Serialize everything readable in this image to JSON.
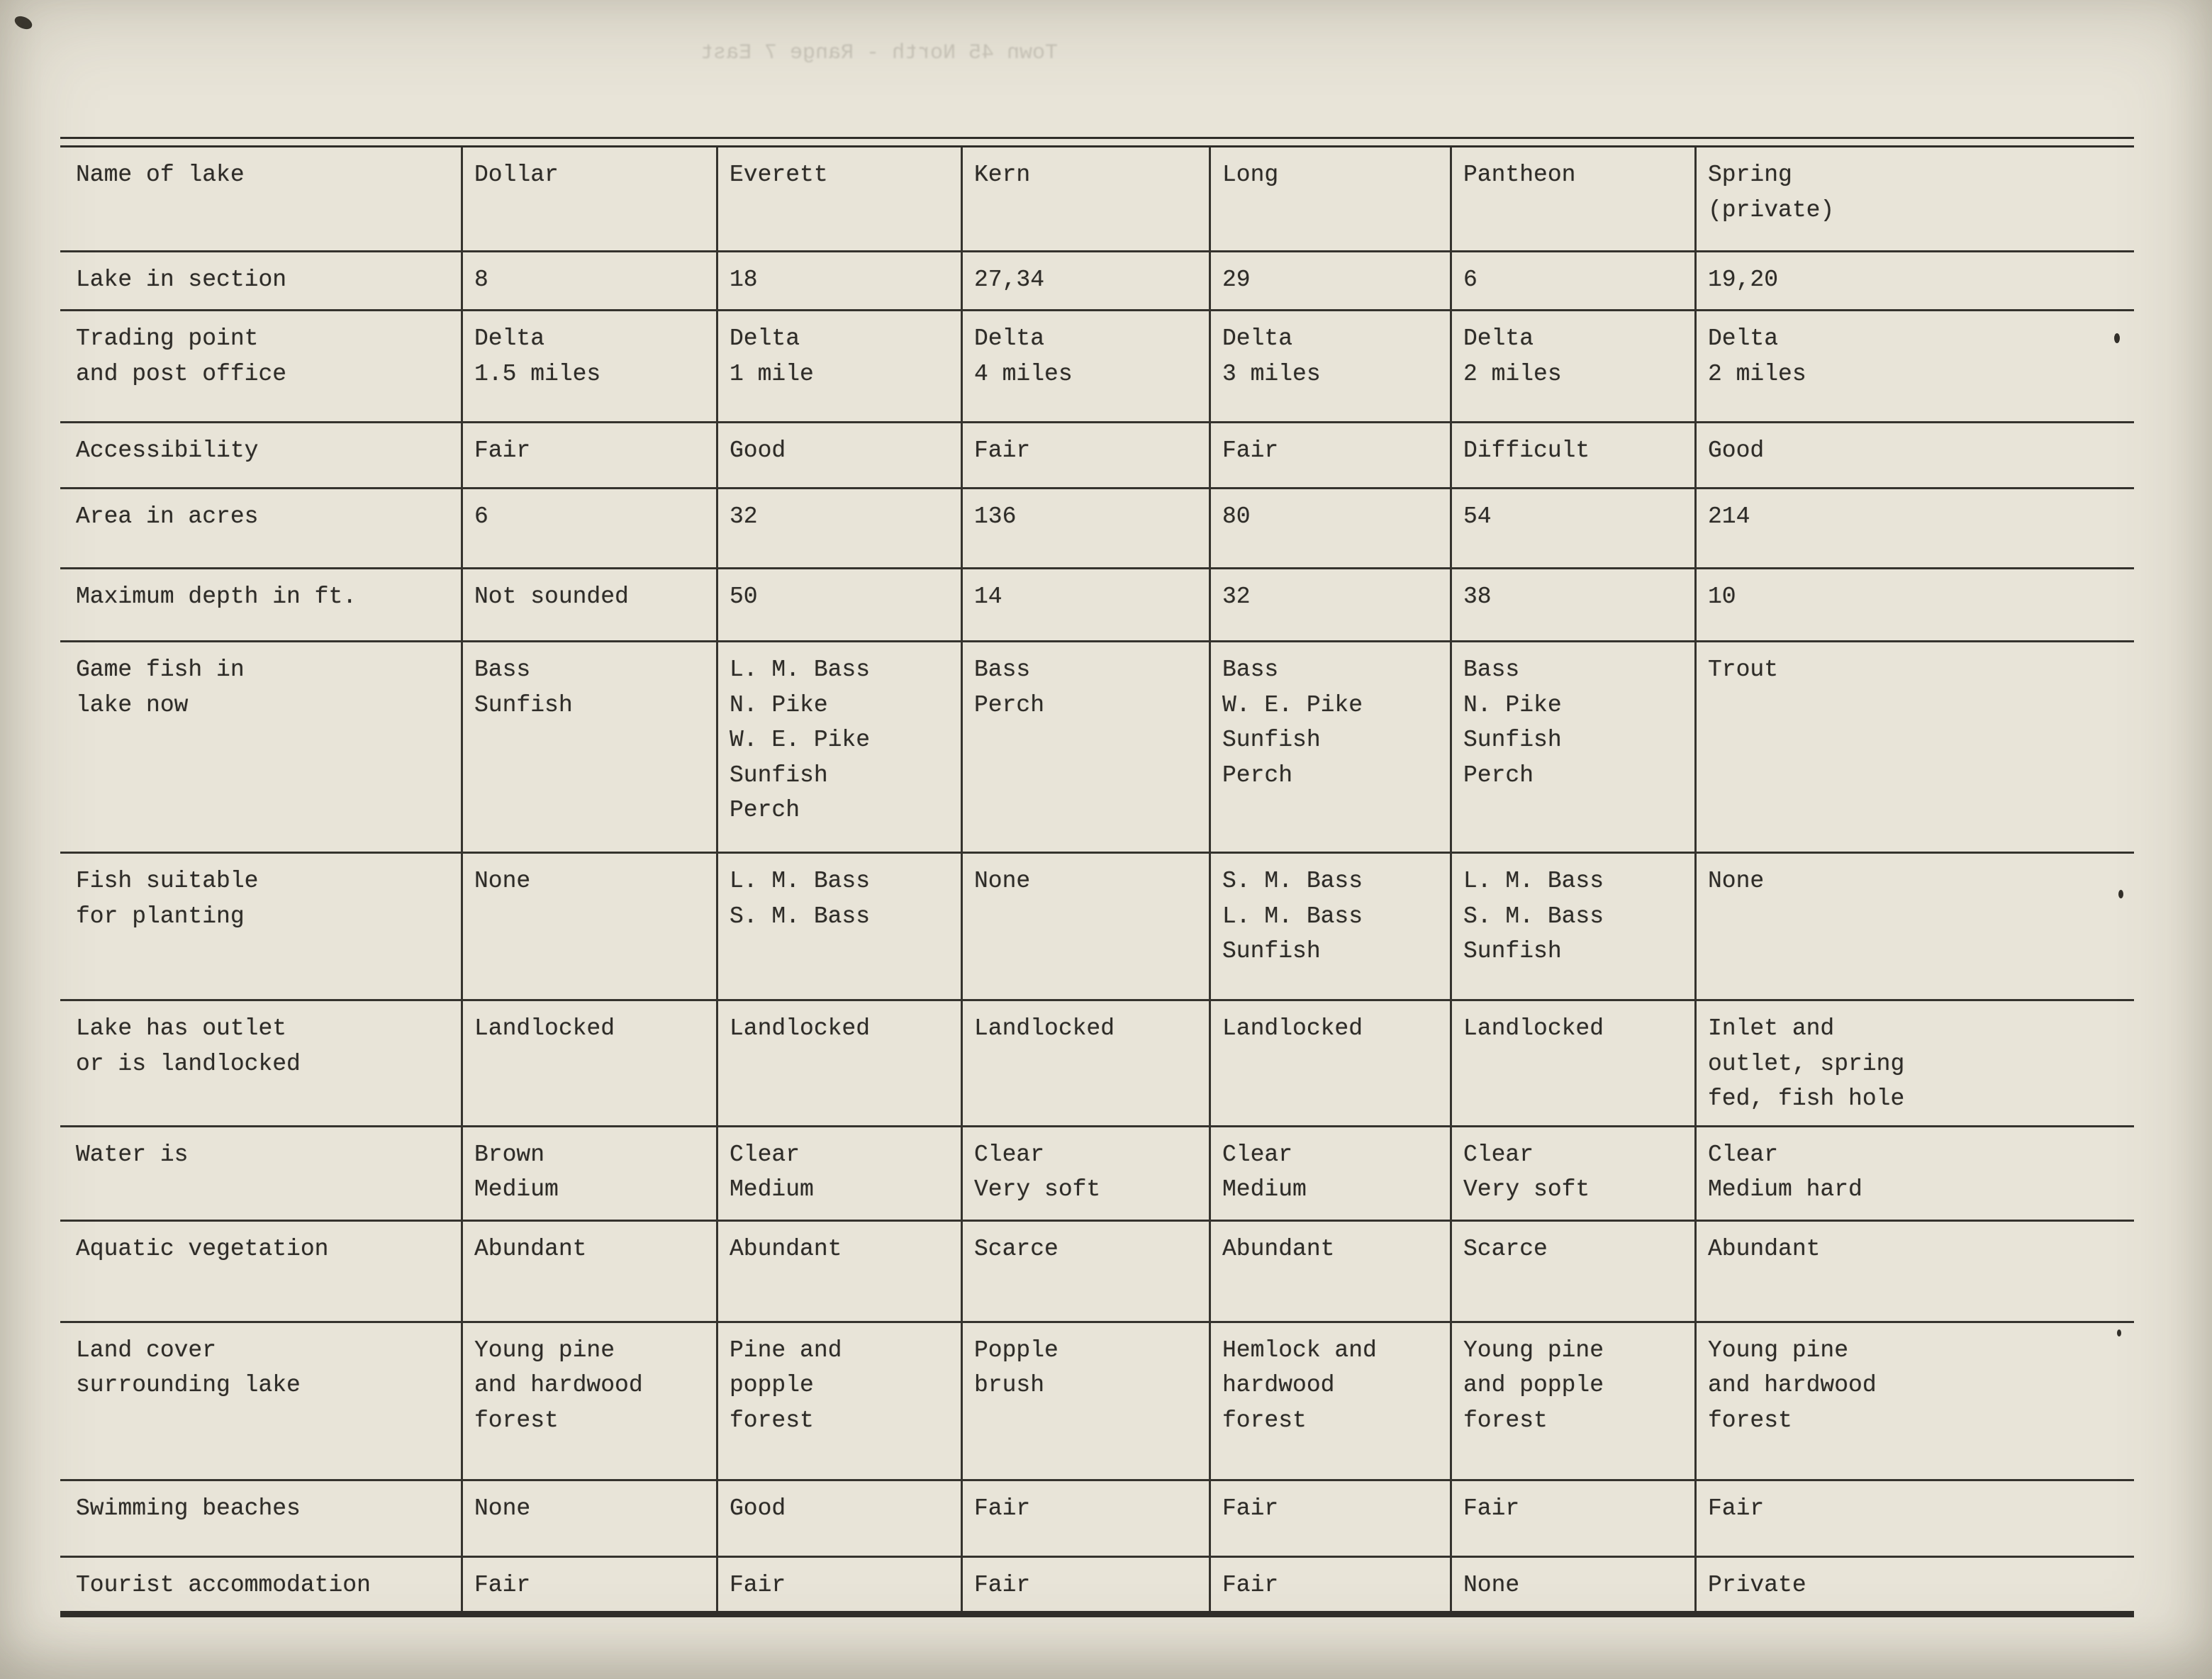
{
  "page": {
    "bleed_through_text": "Town 45 North - Range 7 East"
  },
  "table": {
    "rows": [
      {
        "label": "Name of lake",
        "cells": [
          "Dollar",
          "Everett",
          "Kern",
          "Long",
          "Pantheon",
          "Spring\n(private)"
        ]
      },
      {
        "label": "Lake in section",
        "cells": [
          "8",
          "18",
          "27,34",
          "29",
          "6",
          "19,20"
        ]
      },
      {
        "label": "Trading point\nand post office",
        "cells": [
          "Delta\n1.5 miles",
          "Delta\n1 mile",
          "Delta\n4 miles",
          "Delta\n3 miles",
          "Delta\n2 miles",
          "Delta\n2 miles"
        ]
      },
      {
        "label": "Accessibility",
        "cells": [
          "Fair",
          "Good",
          "Fair",
          "Fair",
          "Difficult",
          "Good"
        ]
      },
      {
        "label": "Area in acres",
        "cells": [
          "6",
          "32",
          "136",
          "80",
          "54",
          "214"
        ]
      },
      {
        "label": "Maximum depth in ft.",
        "cells": [
          "Not sounded",
          "50",
          "14",
          "32",
          "38",
          "10"
        ]
      },
      {
        "label": "Game fish in\nlake now",
        "cells": [
          "Bass\nSunfish",
          "L. M. Bass\nN. Pike\nW. E. Pike\nSunfish\nPerch",
          "Bass\nPerch",
          "Bass\nW. E. Pike\nSunfish\nPerch",
          "Bass\nN. Pike\nSunfish\nPerch",
          "Trout"
        ]
      },
      {
        "label": "Fish suitable\nfor planting",
        "cells": [
          "None",
          "L. M. Bass\nS. M. Bass",
          "None",
          "S. M. Bass\nL. M. Bass\nSunfish",
          "L. M. Bass\nS. M. Bass\nSunfish",
          "None"
        ]
      },
      {
        "label": "Lake has outlet\nor is landlocked",
        "cells": [
          "Landlocked",
          "Landlocked",
          "Landlocked",
          "Landlocked",
          "Landlocked",
          "Inlet and\noutlet, spring\nfed, fish hole"
        ]
      },
      {
        "label": "Water is",
        "cells": [
          "Brown\nMedium",
          "Clear\nMedium",
          "Clear\nVery soft",
          "Clear\nMedium",
          "Clear\nVery soft",
          "Clear\nMedium hard"
        ]
      },
      {
        "label": "Aquatic vegetation",
        "cells": [
          "Abundant",
          "Abundant",
          "Scarce",
          "Abundant",
          "Scarce",
          "Abundant"
        ]
      },
      {
        "label": "Land cover\nsurrounding lake",
        "cells": [
          "Young pine\nand hardwood\nforest",
          "Pine and\npopple\nforest",
          "Popple\nbrush",
          "Hemlock and\nhardwood\nforest",
          "Young pine\nand popple\nforest",
          "Young pine\nand hardwood\nforest"
        ]
      },
      {
        "label": "Swimming beaches",
        "cells": [
          "None",
          "Good",
          "Fair",
          "Fair",
          "Fair",
          "Fair"
        ]
      },
      {
        "label": "Tourist accommodation",
        "cells": [
          "Fair",
          "Fair",
          "Fair",
          "Fair",
          "None",
          "Private"
        ]
      }
    ]
  }
}
